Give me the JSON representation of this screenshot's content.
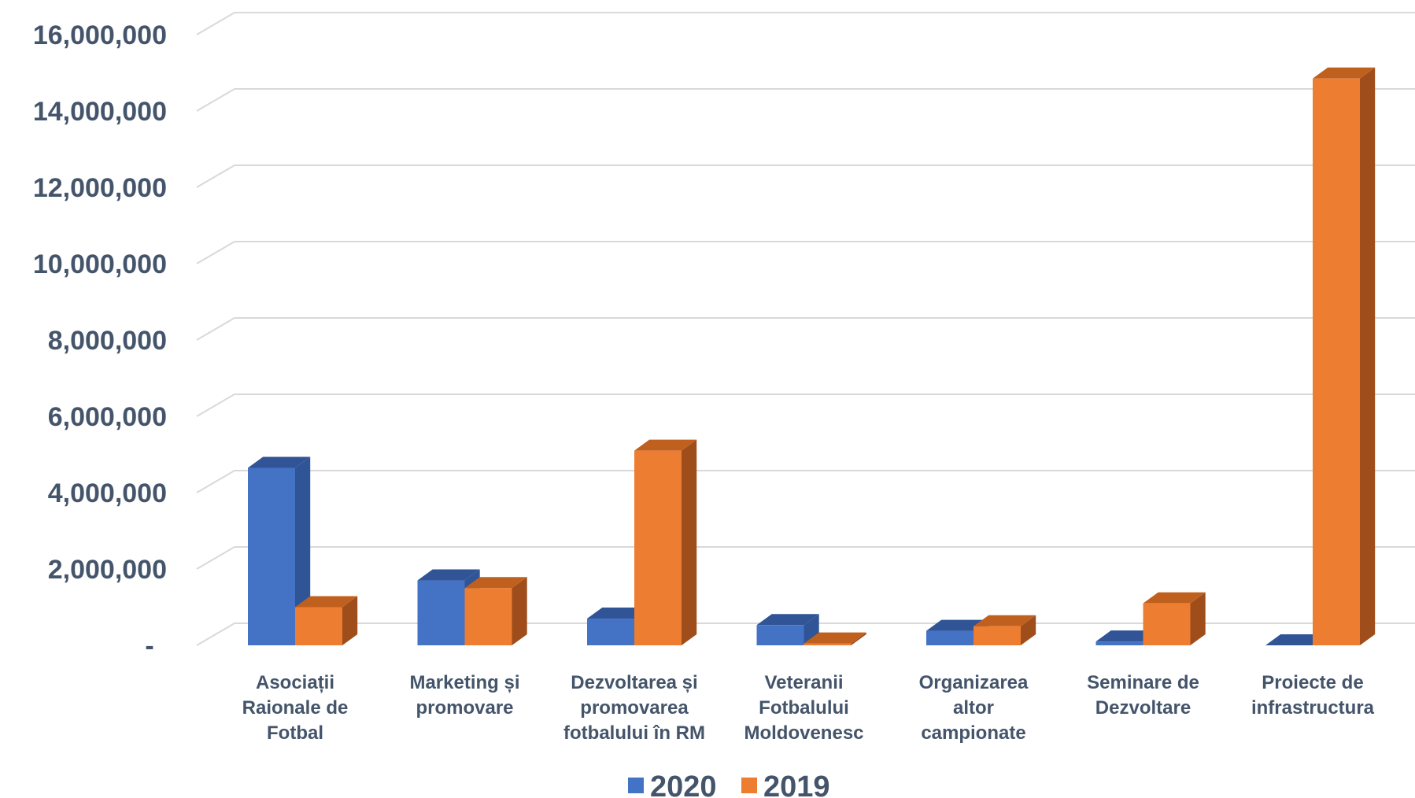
{
  "chart_data": {
    "type": "bar",
    "title": "",
    "xlabel": "",
    "ylabel": "",
    "ylim": [
      0,
      16000000
    ],
    "y_ticks": [
      "-",
      "2,000,000",
      "4,000,000",
      "6,000,000",
      "8,000,000",
      "10,000,000",
      "12,000,000",
      "14,000,000",
      "16,000,000"
    ],
    "categories": [
      [
        "Asociații",
        "Raionale de",
        "Fotbal"
      ],
      [
        "Marketing și",
        "promovare"
      ],
      [
        "Dezvoltarea și",
        "promovarea",
        "fotbalului în RM"
      ],
      [
        "Veteranii",
        "Fotbalului",
        "Moldovenesc"
      ],
      [
        "Organizarea",
        "altor",
        "campionate"
      ],
      [
        "Seminare de",
        "Dezvoltare"
      ],
      [
        "Proiecte de",
        "infrastructura"
      ]
    ],
    "series": [
      {
        "name": "2020",
        "values": [
          4650000,
          1700000,
          700000,
          530000,
          380000,
          100000,
          0
        ]
      },
      {
        "name": "2019",
        "values": [
          1000000,
          1500000,
          5100000,
          50000,
          500000,
          1100000,
          14850000
        ]
      }
    ],
    "grid": true,
    "legend": "bottom",
    "style": "3d-clustered-column"
  },
  "colors": {
    "series_2020": "#4472C4",
    "series_2020_side": "#2F5597",
    "series_2020_top": "#305496",
    "series_2019": "#ED7D31",
    "series_2019_side": "#A04D1C",
    "series_2019_top": "#C0601E",
    "text": "#44546A",
    "grid": "#D9D9D9"
  }
}
